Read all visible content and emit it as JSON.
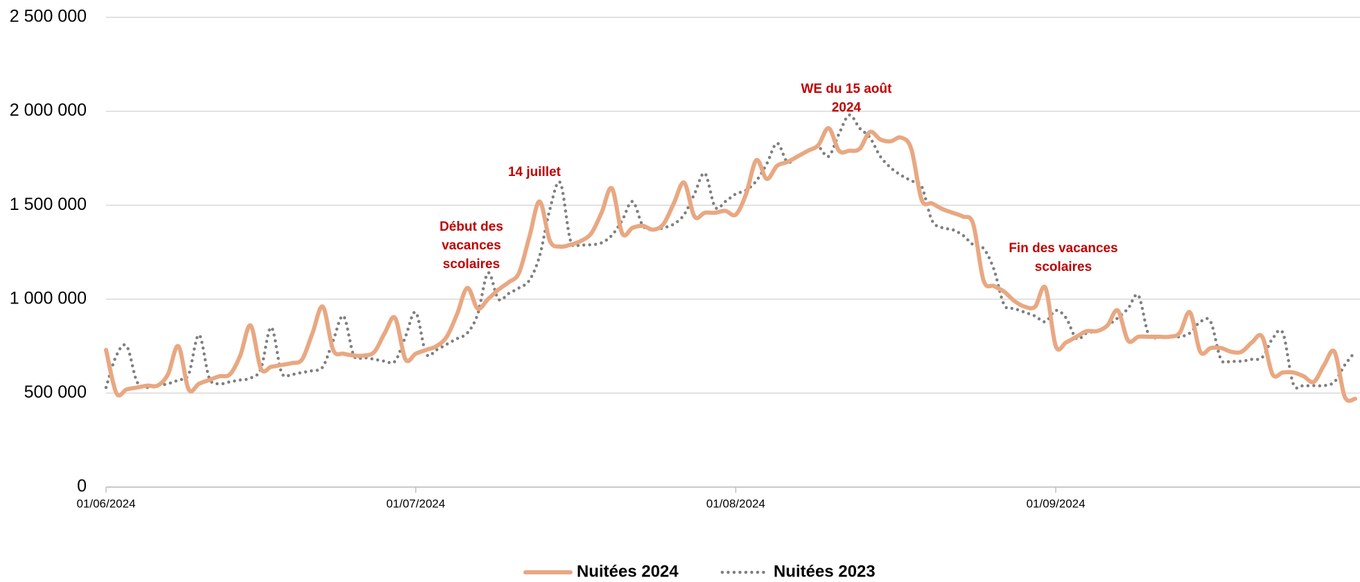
{
  "chart_data": {
    "type": "line",
    "x": [
      "2024-06-01",
      "2024-06-02",
      "2024-06-03",
      "2024-06-04",
      "2024-06-05",
      "2024-06-06",
      "2024-06-07",
      "2024-06-08",
      "2024-06-09",
      "2024-06-10",
      "2024-06-11",
      "2024-06-12",
      "2024-06-13",
      "2024-06-14",
      "2024-06-15",
      "2024-06-16",
      "2024-06-17",
      "2024-06-18",
      "2024-06-19",
      "2024-06-20",
      "2024-06-21",
      "2024-06-22",
      "2024-06-23",
      "2024-06-24",
      "2024-06-25",
      "2024-06-26",
      "2024-06-27",
      "2024-06-28",
      "2024-06-29",
      "2024-06-30",
      "2024-07-01",
      "2024-07-02",
      "2024-07-03",
      "2024-07-04",
      "2024-07-05",
      "2024-07-06",
      "2024-07-07",
      "2024-07-08",
      "2024-07-09",
      "2024-07-10",
      "2024-07-11",
      "2024-07-12",
      "2024-07-13",
      "2024-07-14",
      "2024-07-15",
      "2024-07-16",
      "2024-07-17",
      "2024-07-18",
      "2024-07-19",
      "2024-07-20",
      "2024-07-21",
      "2024-07-22",
      "2024-07-23",
      "2024-07-24",
      "2024-07-25",
      "2024-07-26",
      "2024-07-27",
      "2024-07-28",
      "2024-07-29",
      "2024-07-30",
      "2024-07-31",
      "2024-08-01",
      "2024-08-02",
      "2024-08-03",
      "2024-08-04",
      "2024-08-05",
      "2024-08-06",
      "2024-08-07",
      "2024-08-08",
      "2024-08-09",
      "2024-08-10",
      "2024-08-11",
      "2024-08-12",
      "2024-08-13",
      "2024-08-14",
      "2024-08-15",
      "2024-08-16",
      "2024-08-17",
      "2024-08-18",
      "2024-08-19",
      "2024-08-20",
      "2024-08-21",
      "2024-08-22",
      "2024-08-23",
      "2024-08-24",
      "2024-08-25",
      "2024-08-26",
      "2024-08-27",
      "2024-08-28",
      "2024-08-29",
      "2024-08-30",
      "2024-08-31",
      "2024-09-01",
      "2024-09-02",
      "2024-09-03",
      "2024-09-04",
      "2024-09-05",
      "2024-09-06",
      "2024-09-07",
      "2024-09-08",
      "2024-09-09",
      "2024-09-10",
      "2024-09-11",
      "2024-09-12",
      "2024-09-13",
      "2024-09-14",
      "2024-09-15",
      "2024-09-16",
      "2024-09-17",
      "2024-09-18",
      "2024-09-19",
      "2024-09-20",
      "2024-09-21",
      "2024-09-22",
      "2024-09-23",
      "2024-09-24",
      "2024-09-25",
      "2024-09-26",
      "2024-09-27",
      "2024-09-28",
      "2024-09-29",
      "2024-09-30"
    ],
    "series": [
      {
        "name": "Nuitées 2024",
        "color": "#e8a882",
        "style": "solid",
        "values": [
          730000,
          500000,
          520000,
          530000,
          540000,
          540000,
          600000,
          750000,
          520000,
          550000,
          570000,
          590000,
          600000,
          700000,
          860000,
          630000,
          640000,
          650000,
          660000,
          680000,
          820000,
          960000,
          730000,
          710000,
          700000,
          700000,
          720000,
          820000,
          900000,
          680000,
          710000,
          730000,
          750000,
          800000,
          920000,
          1060000,
          950000,
          1000000,
          1050000,
          1090000,
          1140000,
          1330000,
          1520000,
          1310000,
          1280000,
          1290000,
          1310000,
          1350000,
          1460000,
          1590000,
          1350000,
          1380000,
          1390000,
          1370000,
          1400000,
          1510000,
          1620000,
          1440000,
          1460000,
          1460000,
          1470000,
          1450000,
          1560000,
          1740000,
          1640000,
          1710000,
          1730000,
          1760000,
          1790000,
          1820000,
          1910000,
          1790000,
          1790000,
          1800000,
          1890000,
          1850000,
          1840000,
          1860000,
          1800000,
          1530000,
          1510000,
          1480000,
          1460000,
          1440000,
          1400000,
          1100000,
          1070000,
          1040000,
          990000,
          960000,
          960000,
          1060000,
          750000,
          770000,
          800000,
          830000,
          830000,
          860000,
          940000,
          780000,
          800000,
          800000,
          800000,
          800000,
          820000,
          930000,
          720000,
          740000,
          740000,
          720000,
          720000,
          770000,
          800000,
          600000,
          610000,
          610000,
          590000,
          560000,
          650000,
          720000,
          480000,
          470000
        ]
      },
      {
        "name": "Nuitées 2023",
        "color": "#7f7f7f",
        "style": "dotted",
        "values": [
          530000,
          700000,
          750000,
          560000,
          530000,
          540000,
          550000,
          570000,
          600000,
          810000,
          580000,
          550000,
          560000,
          570000,
          580000,
          630000,
          850000,
          610000,
          600000,
          610000,
          620000,
          640000,
          780000,
          910000,
          700000,
          690000,
          680000,
          670000,
          670000,
          800000,
          930000,
          710000,
          730000,
          760000,
          790000,
          820000,
          920000,
          1140000,
          1000000,
          1030000,
          1060000,
          1100000,
          1230000,
          1480000,
          1620000,
          1310000,
          1290000,
          1290000,
          1300000,
          1340000,
          1420000,
          1520000,
          1390000,
          1370000,
          1380000,
          1400000,
          1450000,
          1560000,
          1670000,
          1490000,
          1520000,
          1560000,
          1580000,
          1630000,
          1720000,
          1830000,
          1730000,
          1760000,
          1790000,
          1810000,
          1760000,
          1880000,
          1980000,
          1910000,
          1860000,
          1760000,
          1700000,
          1660000,
          1630000,
          1600000,
          1420000,
          1380000,
          1370000,
          1340000,
          1290000,
          1270000,
          1160000,
          970000,
          950000,
          930000,
          910000,
          880000,
          940000,
          900000,
          790000,
          820000,
          830000,
          860000,
          900000,
          950000,
          1020000,
          810000,
          800000,
          800000,
          800000,
          820000,
          880000,
          880000,
          680000,
          670000,
          670000,
          680000,
          690000,
          790000,
          820000,
          550000,
          540000,
          540000,
          540000,
          560000,
          650000,
          720000
        ]
      }
    ],
    "xlim": [
      "2024-06-01",
      "2024-09-30"
    ],
    "xticks": [
      {
        "value": "2024-06-01",
        "label": "01/06/2024"
      },
      {
        "value": "2024-07-01",
        "label": "01/07/2024"
      },
      {
        "value": "2024-08-01",
        "label": "01/08/2024"
      },
      {
        "value": "2024-09-01",
        "label": "01/09/2024"
      }
    ],
    "ylim": [
      0,
      2500000
    ],
    "yticks": [
      0,
      {
        "value": 500000,
        "label": "500 000"
      },
      {
        "value": 1000000,
        "label": "1 000 000"
      },
      {
        "value": 1500000,
        "label": "1 500 000"
      },
      {
        "value": 2000000,
        "label": "2 000 000"
      },
      {
        "value": 2500000,
        "label": "2 500 000"
      }
    ],
    "grid": true,
    "legend": "bottom",
    "annotation_color": "#c00000",
    "annotations": [
      {
        "lines": [
          "Début des",
          "vacances",
          "scolaires"
        ]
      },
      {
        "lines": [
          "14 juillet"
        ]
      },
      {
        "lines": [
          "WE du 15 août",
          "2024"
        ]
      },
      {
        "lines": [
          "Fin des vacances",
          "scolaires"
        ]
      }
    ]
  }
}
